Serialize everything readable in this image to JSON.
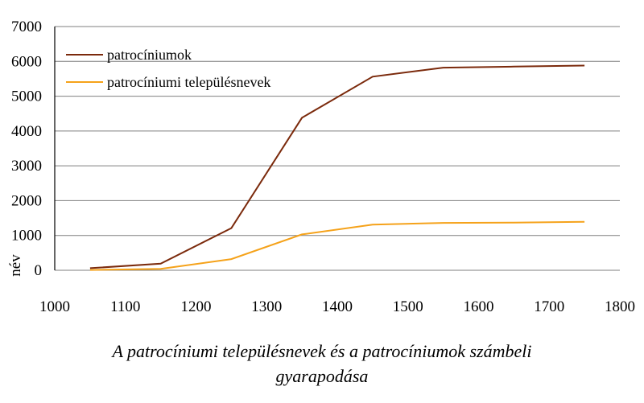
{
  "chart_data": {
    "type": "line",
    "ylabel": "név",
    "xlim": [
      1000,
      1800
    ],
    "ylim": [
      0,
      7000
    ],
    "x_ticks": [
      "1000",
      "1100",
      "1200",
      "1300",
      "1400",
      "1500",
      "1600",
      "1700",
      "1800"
    ],
    "y_ticks": [
      "0",
      "1000",
      "2000",
      "3000",
      "4000",
      "5000",
      "6000",
      "7000"
    ],
    "grid": "horizontal",
    "legend_position": "top-left",
    "series": [
      {
        "name": "patrocíniumok",
        "color": "#7b2a0c",
        "x": [
          1050,
          1150,
          1250,
          1350,
          1450,
          1550,
          1650,
          1750
        ],
        "y": [
          60,
          190,
          1210,
          4380,
          5560,
          5820,
          5850,
          5880
        ]
      },
      {
        "name": "patrocíniumi településnevek",
        "color": "#f5a21a",
        "x": [
          1050,
          1150,
          1250,
          1350,
          1450,
          1550,
          1650,
          1750
        ],
        "y": [
          10,
          40,
          320,
          1030,
          1310,
          1360,
          1370,
          1390
        ]
      }
    ]
  },
  "caption": {
    "line1": "A patrocíniumi településnevek és a patrocíniumok számbeli",
    "line2": "gyarapodása"
  }
}
